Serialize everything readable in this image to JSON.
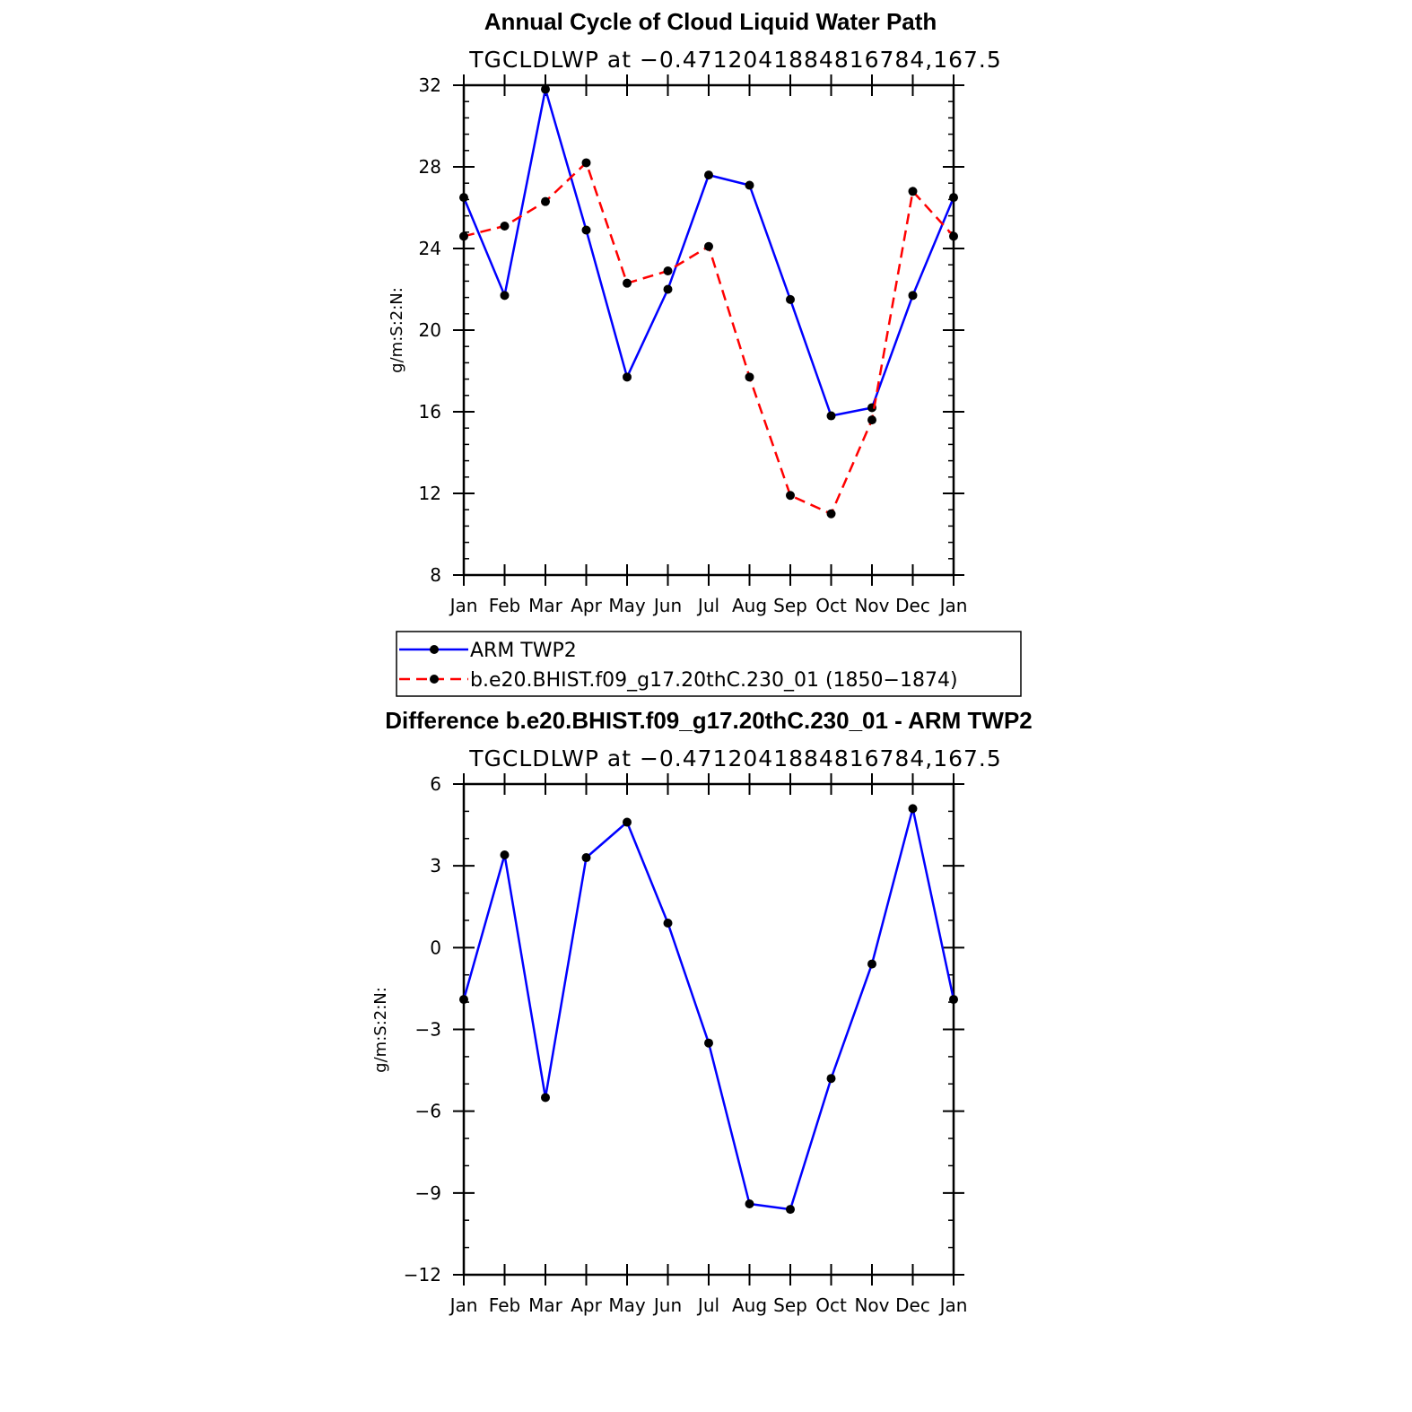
{
  "chart_data": [
    {
      "type": "line",
      "title": "Annual Cycle of Cloud Liquid Water Path",
      "subtitle": "TGCLDLWP at −0.4712041884816784,167.5",
      "xlabel": "",
      "ylabel": "g/m:S:2:N:",
      "ylim": [
        8,
        32
      ],
      "yticks": [
        "8",
        "12",
        "16",
        "20",
        "24",
        "28",
        "32"
      ],
      "categories": [
        "Jan",
        "Feb",
        "Mar",
        "Apr",
        "May",
        "Jun",
        "Jul",
        "Aug",
        "Sep",
        "Oct",
        "Nov",
        "Dec",
        "Jan"
      ],
      "series": [
        {
          "name": "ARM TWP2",
          "color": "#0000ff",
          "dash": "solid",
          "values": [
            26.5,
            21.7,
            31.8,
            24.9,
            17.7,
            22.0,
            27.6,
            27.1,
            21.5,
            15.8,
            16.2,
            21.7,
            26.5
          ]
        },
        {
          "name": "b.e20.BHIST.f09_g17.20thC.230_01 (1850−1874)",
          "color": "#ff0000",
          "dash": "dashed",
          "values": [
            24.6,
            25.1,
            26.3,
            28.2,
            22.3,
            22.9,
            24.1,
            17.7,
            11.9,
            11.0,
            15.6,
            26.8,
            24.6
          ]
        }
      ],
      "grid": false,
      "legend": "below"
    },
    {
      "type": "line",
      "title": "Difference b.e20.BHIST.f09_g17.20thC.230_01 - ARM TWP2",
      "subtitle": "TGCLDLWP at −0.4712041884816784,167.5",
      "xlabel": "",
      "ylabel": "g/m:S:2:N:",
      "ylim": [
        -12,
        6
      ],
      "yticks": [
        "−12",
        "−9",
        "−6",
        "−3",
        "0",
        "3",
        "6"
      ],
      "categories": [
        "Jan",
        "Feb",
        "Mar",
        "Apr",
        "May",
        "Jun",
        "Jul",
        "Aug",
        "Sep",
        "Oct",
        "Nov",
        "Dec",
        "Jan"
      ],
      "series": [
        {
          "color": "#0000ff",
          "dash": "solid",
          "values": [
            -1.9,
            3.4,
            -5.5,
            3.3,
            4.6,
            0.9,
            -3.5,
            -9.4,
            -9.6,
            -4.8,
            -0.6,
            5.1,
            -1.9
          ]
        }
      ],
      "grid": false,
      "legend": "none"
    }
  ]
}
